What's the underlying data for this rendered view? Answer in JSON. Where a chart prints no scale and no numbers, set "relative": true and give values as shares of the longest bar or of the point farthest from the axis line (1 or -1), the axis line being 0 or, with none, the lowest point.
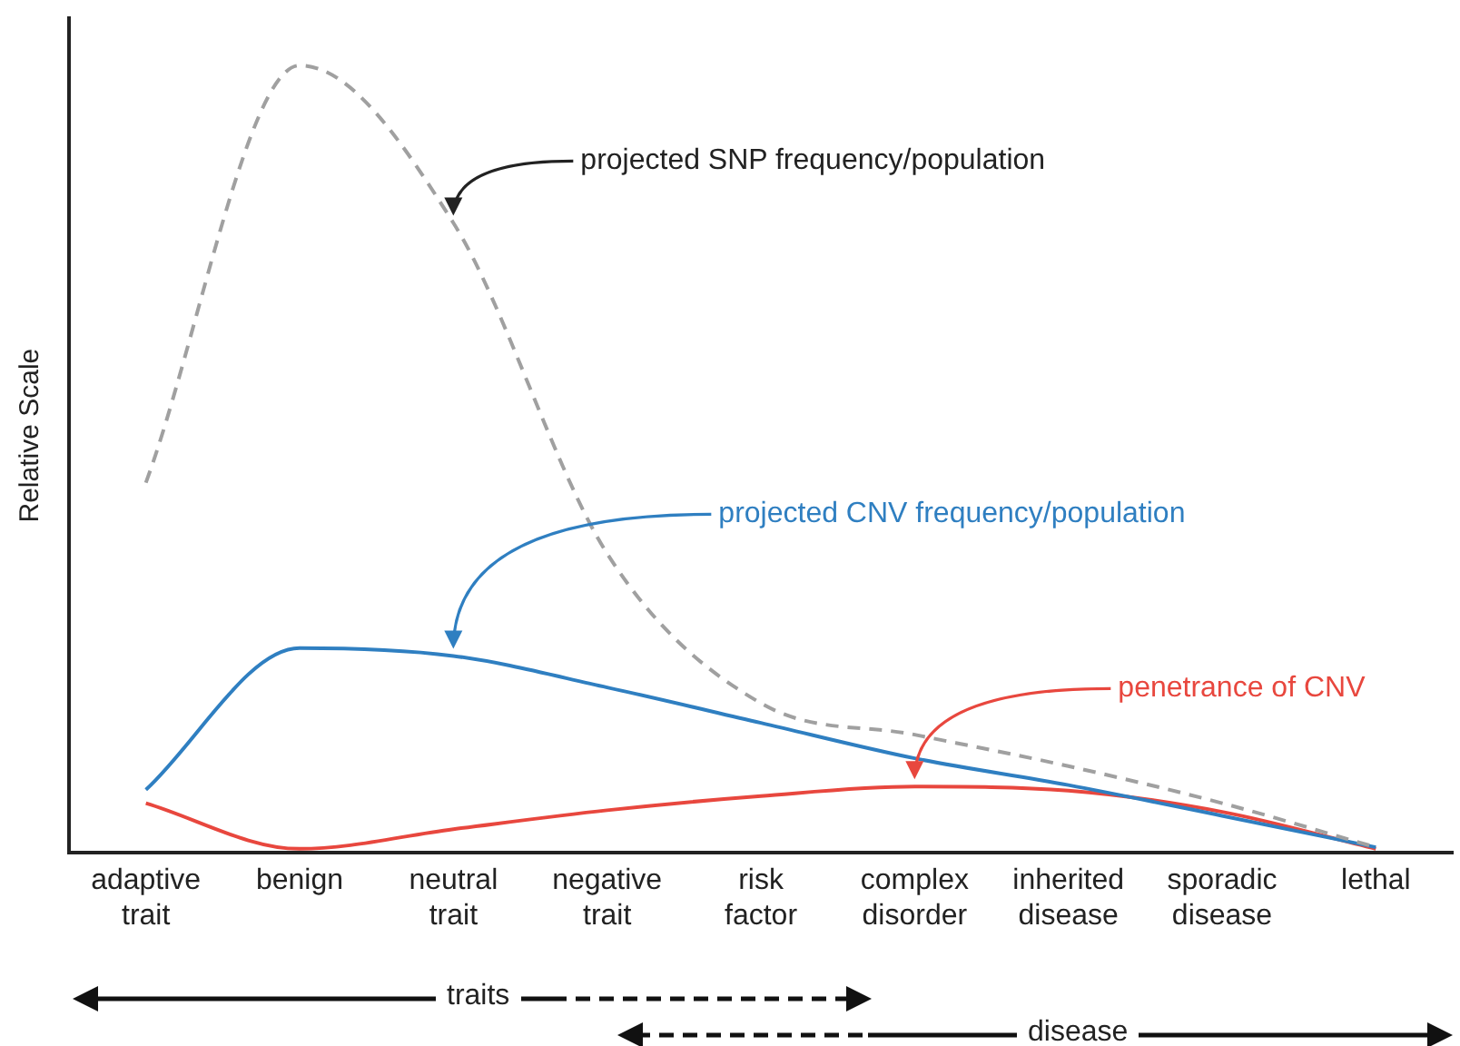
{
  "chart_data": {
    "type": "line",
    "relative": true,
    "ylabel": "Relative Scale",
    "categories": [
      "adaptive trait",
      "benign",
      "neutral trait",
      "negative trait",
      "risk factor",
      "complex disorder",
      "inherited disease",
      "sporadic disease",
      "lethal"
    ],
    "series": [
      {
        "color": "#a0a0a0",
        "line_style": "dashed",
        "values": [
          0.47,
          1,
          0.8,
          0.38,
          0.19,
          0.15,
          0.11,
          0.063,
          0.007
        ]
      },
      {
        "color": "#2f7fc1",
        "line_style": "solid",
        "values": [
          0.08,
          0.26,
          0.25,
          0.21,
          0.165,
          0.12,
          0.086,
          0.047,
          0.007
        ]
      },
      {
        "color": "#e8473e",
        "line_style": "solid",
        "values": [
          0.063,
          0.005,
          0.03,
          0.054,
          0.072,
          0.084,
          0.079,
          0.052,
          0.005
        ]
      }
    ],
    "marker": "none",
    "grid": false,
    "legend": false,
    "annotations": [
      {
        "text": "projected SNP frequency/population",
        "x": "neutral trait",
        "y": 0.8
      },
      {
        "text": "projected CNV frequency/population",
        "x": "neutral trait",
        "y": 0.25
      },
      {
        "text": "penetrance of CNV",
        "x": "complex disorder",
        "y": 0.084
      },
      "traits",
      "disease"
    ]
  }
}
